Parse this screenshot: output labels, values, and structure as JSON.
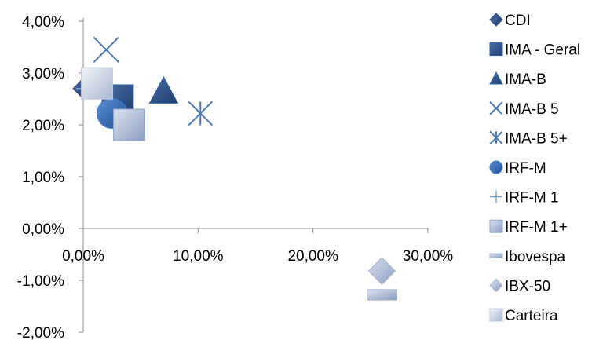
{
  "chart_data": {
    "type": "scatter",
    "title": "",
    "xlabel": "",
    "ylabel": "",
    "xlim": [
      0,
      0.3
    ],
    "ylim": [
      -0.02,
      0.04
    ],
    "x_ticks": [
      0,
      0.1,
      0.2,
      0.3
    ],
    "x_tick_labels": [
      "0,00%",
      "10,00%",
      "20,00%",
      "30,00%"
    ],
    "y_ticks": [
      0.04,
      0.03,
      0.02,
      0.01,
      0,
      -0.01,
      -0.02
    ],
    "y_tick_labels": [
      "4,00%",
      "3,00%",
      "2,00%",
      "1,00%",
      "0,00%",
      "-1,00%",
      "-2,00%"
    ],
    "grid": false,
    "legend_position": "right",
    "series": [
      {
        "name": "CDI",
        "marker": "diamond",
        "color": "#2e4f86",
        "x": 0.0,
        "y": 0.027
      },
      {
        "name": "IMA - Geral",
        "marker": "square",
        "color": "#2e5fa0",
        "x": 0.03,
        "y": 0.0247
      },
      {
        "name": "IMA-B",
        "marker": "triangle",
        "color": "#2e5fa0",
        "x": 0.07,
        "y": 0.0265
      },
      {
        "name": "IMA-B 5",
        "marker": "x",
        "color": "#4a78b8",
        "x": 0.02,
        "y": 0.0345
      },
      {
        "name": "IMA-B 5+",
        "marker": "asterisk",
        "color": "#4a78b8",
        "x": 0.102,
        "y": 0.0222
      },
      {
        "name": "IRF-M",
        "marker": "circle",
        "color": "#3f79c5",
        "x": 0.025,
        "y": 0.0222
      },
      {
        "name": "IRF-M 1",
        "marker": "plus",
        "color": "#7f9fcf",
        "x": 0.0,
        "y": 0.027
      },
      {
        "name": "IRF-M 1+",
        "marker": "square",
        "color": "#8ea8d0",
        "x": 0.04,
        "y": 0.02
      },
      {
        "name": "Ibovespa",
        "marker": "dash",
        "color": "#a5b5cf",
        "x": 0.26,
        "y": -0.0128
      },
      {
        "name": "IBX-50",
        "marker": "diamond",
        "color": "#a9b4ca",
        "x": 0.26,
        "y": -0.0082
      },
      {
        "name": "Carteira",
        "marker": "square",
        "color": "#c2cbe0",
        "x": 0.012,
        "y": 0.028
      }
    ]
  }
}
